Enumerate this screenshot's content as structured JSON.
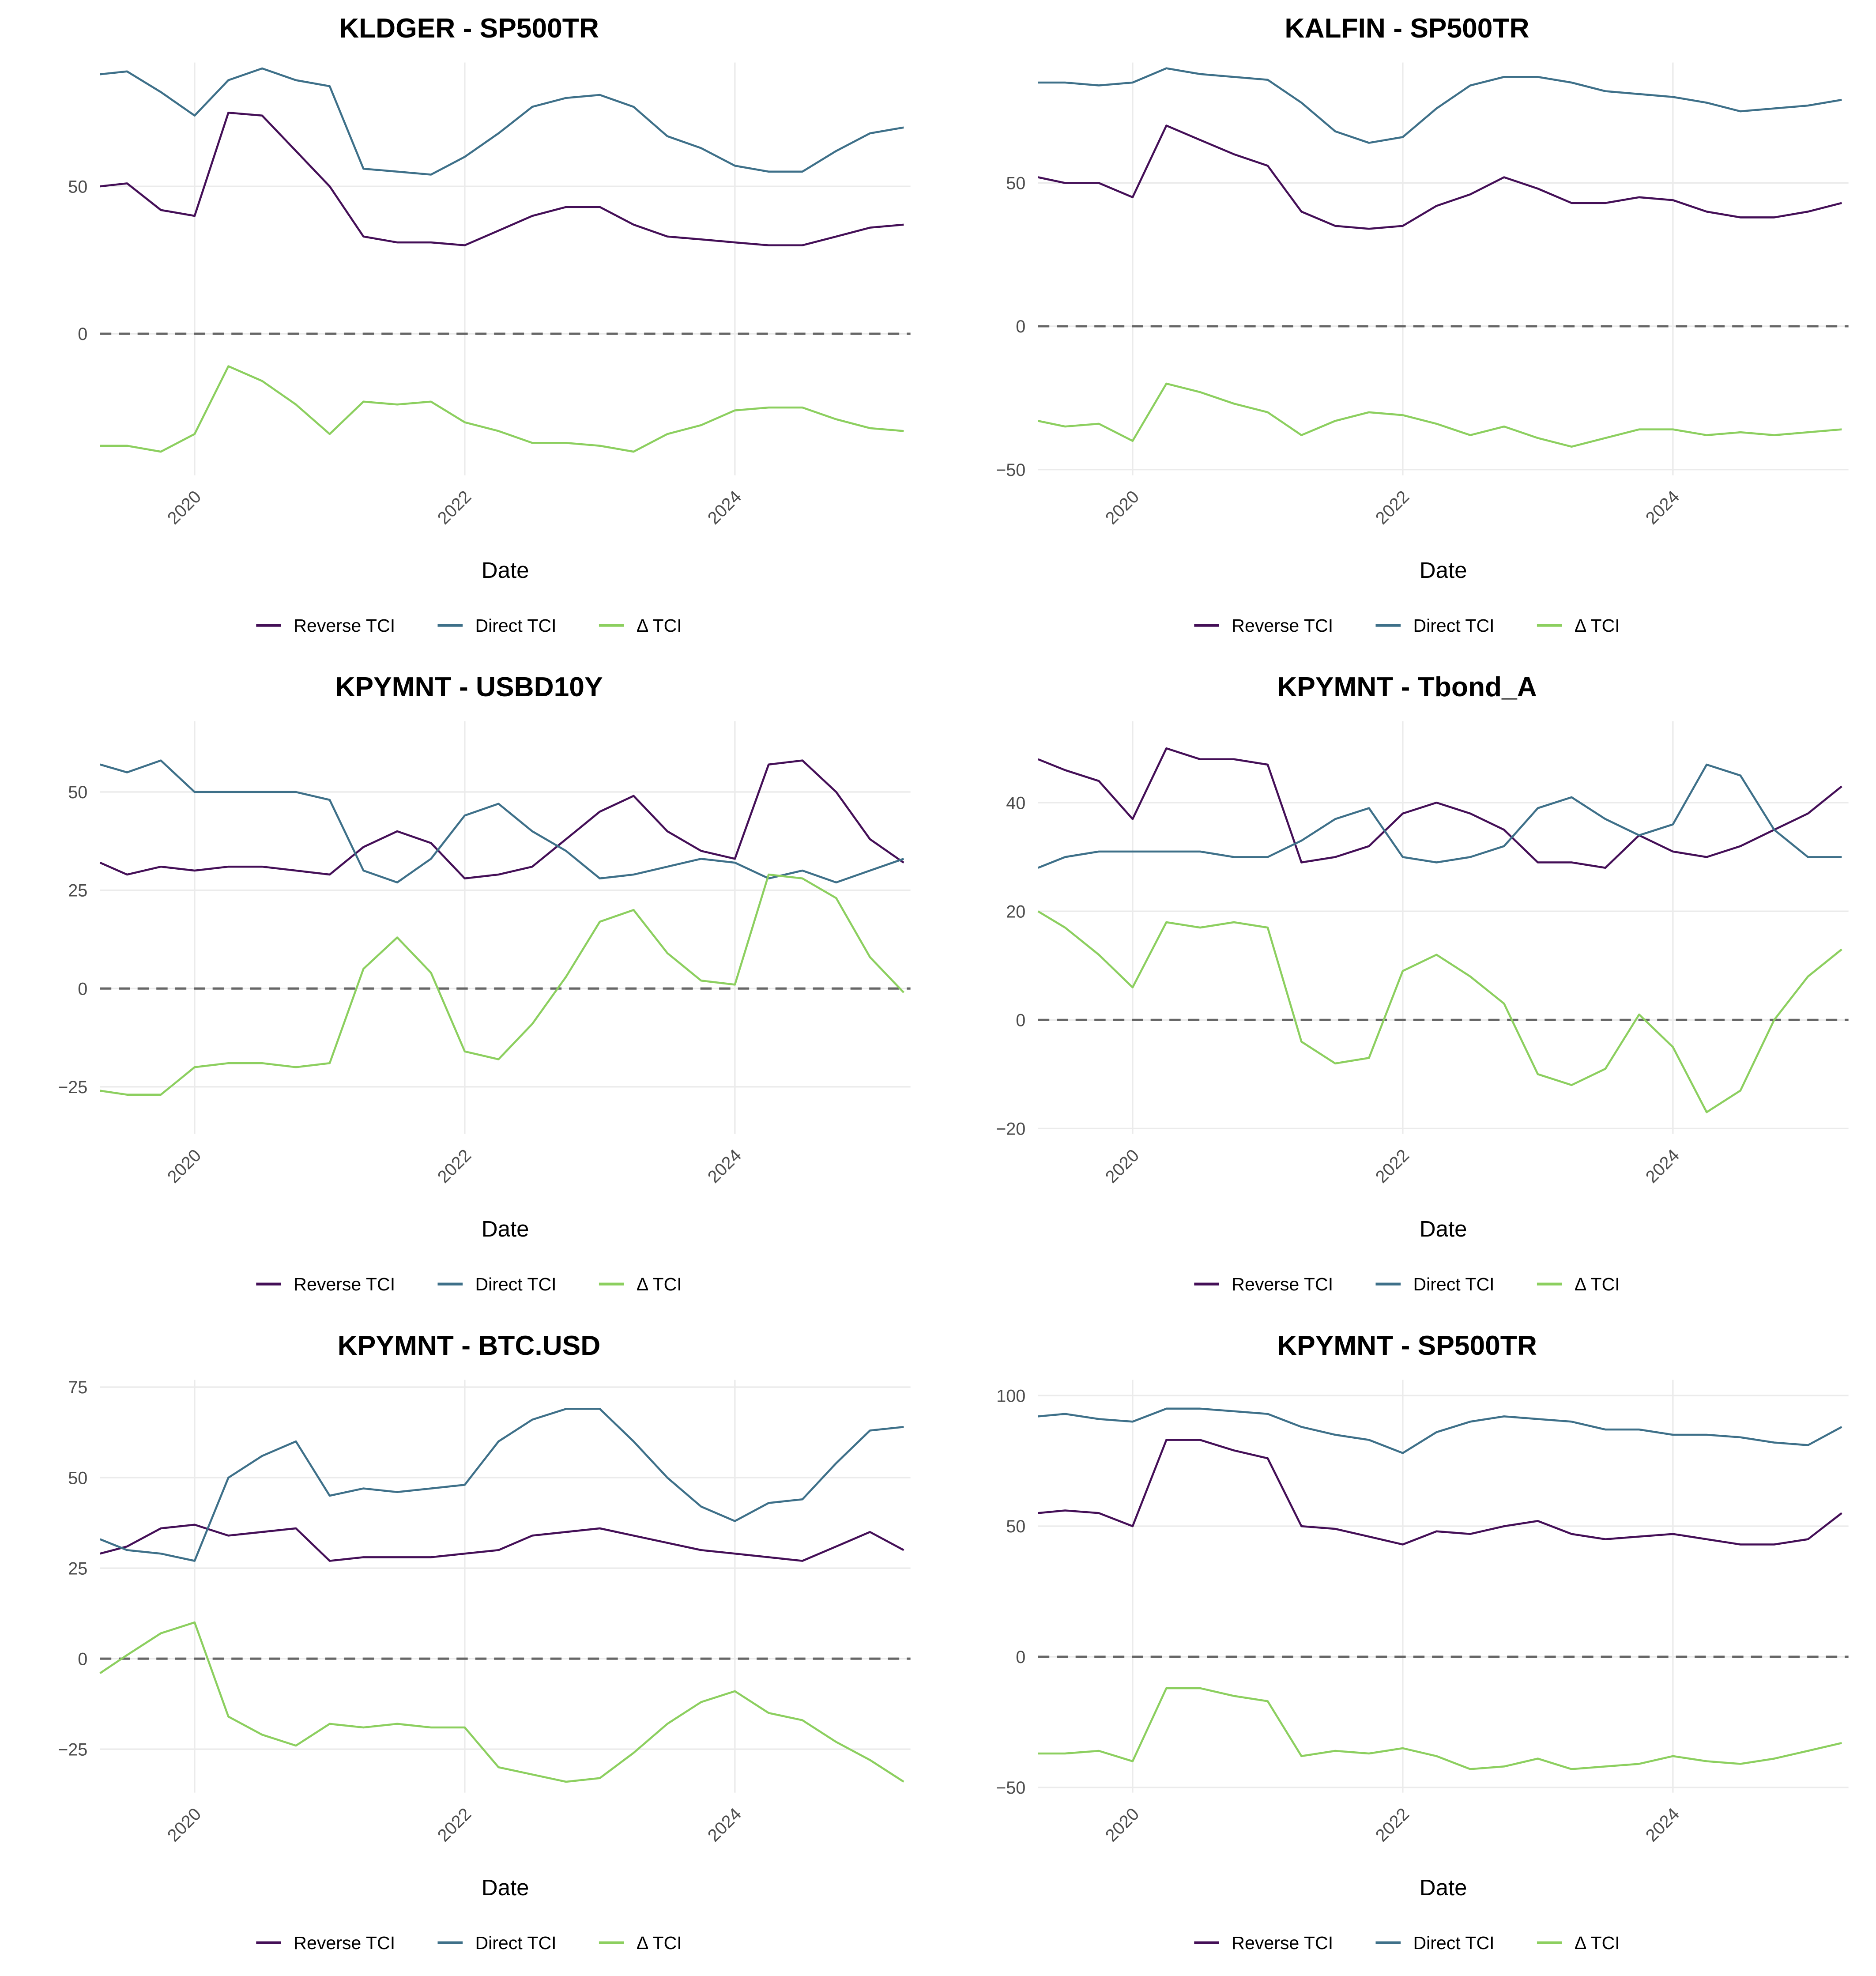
{
  "chart_data": [
    {
      "type": "line",
      "title": "KLDGER - SP500TR",
      "xlabel": "Date",
      "ylabel": "",
      "xlim": [
        2019.3,
        2025.3
      ],
      "ylim": [
        -48,
        92
      ],
      "x_ticks": [
        2020,
        2022,
        2024
      ],
      "x_tick_labels": [
        "2020",
        "2022",
        "2024"
      ],
      "y_ticks": [
        0,
        50
      ],
      "y_tick_labels": [
        "0",
        "50"
      ],
      "reference_line": 0,
      "grid": true,
      "legend_position": "bottom",
      "x": [
        2019.3,
        2019.5,
        2019.75,
        2020,
        2020.25,
        2020.5,
        2020.75,
        2021,
        2021.25,
        2021.5,
        2021.75,
        2022,
        2022.25,
        2022.5,
        2022.75,
        2023,
        2023.25,
        2023.5,
        2023.75,
        2024,
        2024.25,
        2024.5,
        2024.75,
        2025,
        2025.25
      ],
      "series": [
        {
          "name": "Reverse TCI",
          "color": "#440f57",
          "values": [
            50,
            51,
            42,
            40,
            75,
            74,
            62,
            50,
            33,
            31,
            31,
            30,
            35,
            40,
            43,
            43,
            37,
            33,
            32,
            31,
            30,
            30,
            33,
            36,
            37
          ]
        },
        {
          "name": "Direct TCI",
          "color": "#3e7089",
          "values": [
            88,
            89,
            82,
            74,
            86,
            90,
            86,
            84,
            56,
            55,
            54,
            60,
            68,
            77,
            80,
            81,
            77,
            67,
            63,
            57,
            55,
            55,
            62,
            68,
            70
          ]
        },
        {
          "name": "Δ TCI",
          "color": "#8ccf5f",
          "values": [
            -38,
            -38,
            -40,
            -34,
            -11,
            -16,
            -24,
            -34,
            -23,
            -24,
            -23,
            -30,
            -33,
            -37,
            -37,
            -38,
            -40,
            -34,
            -31,
            -26,
            -25,
            -25,
            -29,
            -32,
            -33
          ]
        }
      ]
    },
    {
      "type": "line",
      "title": "KALFIN - SP500TR",
      "xlabel": "Date",
      "ylabel": "",
      "xlim": [
        2019.3,
        2025.3
      ],
      "ylim": [
        -52,
        92
      ],
      "x_ticks": [
        2020,
        2022,
        2024
      ],
      "x_tick_labels": [
        "2020",
        "2022",
        "2024"
      ],
      "y_ticks": [
        -50,
        0,
        50
      ],
      "y_tick_labels": [
        "−50",
        "0",
        "50"
      ],
      "reference_line": 0,
      "grid": true,
      "legend_position": "bottom",
      "x": [
        2019.3,
        2019.5,
        2019.75,
        2020,
        2020.25,
        2020.5,
        2020.75,
        2021,
        2021.25,
        2021.5,
        2021.75,
        2022,
        2022.25,
        2022.5,
        2022.75,
        2023,
        2023.25,
        2023.5,
        2023.75,
        2024,
        2024.25,
        2024.5,
        2024.75,
        2025,
        2025.25
      ],
      "series": [
        {
          "name": "Reverse TCI",
          "color": "#440f57",
          "values": [
            52,
            50,
            50,
            45,
            70,
            65,
            60,
            56,
            40,
            35,
            34,
            35,
            42,
            46,
            52,
            48,
            43,
            43,
            45,
            44,
            40,
            38,
            38,
            40,
            43
          ]
        },
        {
          "name": "Direct TCI",
          "color": "#3e7089",
          "values": [
            85,
            85,
            84,
            85,
            90,
            88,
            87,
            86,
            78,
            68,
            64,
            66,
            76,
            84,
            87,
            87,
            85,
            82,
            81,
            80,
            78,
            75,
            76,
            77,
            79
          ]
        },
        {
          "name": "Δ TCI",
          "color": "#8ccf5f",
          "values": [
            -33,
            -35,
            -34,
            -40,
            -20,
            -23,
            -27,
            -30,
            -38,
            -33,
            -30,
            -31,
            -34,
            -38,
            -35,
            -39,
            -42,
            -39,
            -36,
            -36,
            -38,
            -37,
            -38,
            -37,
            -36
          ]
        }
      ]
    },
    {
      "type": "line",
      "title": "KPYMNT - USBD10Y",
      "xlabel": "Date",
      "ylabel": "",
      "xlim": [
        2019.3,
        2025.3
      ],
      "ylim": [
        -37,
        68
      ],
      "x_ticks": [
        2020,
        2022,
        2024
      ],
      "x_tick_labels": [
        "2020",
        "2022",
        "2024"
      ],
      "y_ticks": [
        -25,
        0,
        25,
        50
      ],
      "y_tick_labels": [
        "−25",
        "0",
        "25",
        "50"
      ],
      "reference_line": 0,
      "grid": true,
      "legend_position": "bottom",
      "x": [
        2019.3,
        2019.5,
        2019.75,
        2020,
        2020.25,
        2020.5,
        2020.75,
        2021,
        2021.25,
        2021.5,
        2021.75,
        2022,
        2022.25,
        2022.5,
        2022.75,
        2023,
        2023.25,
        2023.5,
        2023.75,
        2024,
        2024.25,
        2024.5,
        2024.75,
        2025,
        2025.25
      ],
      "series": [
        {
          "name": "Reverse TCI",
          "color": "#440f57",
          "values": [
            32,
            29,
            31,
            30,
            31,
            31,
            30,
            29,
            36,
            40,
            37,
            28,
            29,
            31,
            38,
            45,
            49,
            40,
            35,
            33,
            57,
            58,
            50,
            38,
            32
          ]
        },
        {
          "name": "Direct TCI",
          "color": "#3e7089",
          "values": [
            57,
            55,
            58,
            50,
            50,
            50,
            50,
            48,
            30,
            27,
            33,
            44,
            47,
            40,
            35,
            28,
            29,
            31,
            33,
            32,
            28,
            30,
            27,
            30,
            33
          ]
        },
        {
          "name": "Δ TCI",
          "color": "#8ccf5f",
          "values": [
            -26,
            -27,
            -27,
            -20,
            -19,
            -19,
            -20,
            -19,
            5,
            13,
            4,
            -16,
            -18,
            -9,
            3,
            17,
            20,
            9,
            2,
            1,
            29,
            28,
            23,
            8,
            -1
          ]
        }
      ]
    },
    {
      "type": "line",
      "title": "KPYMNT - Tbond_A",
      "xlabel": "Date",
      "ylabel": "",
      "xlim": [
        2019.3,
        2025.3
      ],
      "ylim": [
        -21,
        55
      ],
      "x_ticks": [
        2020,
        2022,
        2024
      ],
      "x_tick_labels": [
        "2020",
        "2022",
        "2024"
      ],
      "y_ticks": [
        -20,
        0,
        20,
        40
      ],
      "y_tick_labels": [
        "−20",
        "0",
        "20",
        "40"
      ],
      "reference_line": 0,
      "grid": true,
      "legend_position": "bottom",
      "x": [
        2019.3,
        2019.5,
        2019.75,
        2020,
        2020.25,
        2020.5,
        2020.75,
        2021,
        2021.25,
        2021.5,
        2021.75,
        2022,
        2022.25,
        2022.5,
        2022.75,
        2023,
        2023.25,
        2023.5,
        2023.75,
        2024,
        2024.25,
        2024.5,
        2024.75,
        2025,
        2025.25
      ],
      "series": [
        {
          "name": "Reverse TCI",
          "color": "#440f57",
          "values": [
            48,
            46,
            44,
            37,
            50,
            48,
            48,
            47,
            29,
            30,
            32,
            38,
            40,
            38,
            35,
            29,
            29,
            28,
            34,
            31,
            30,
            32,
            35,
            38,
            43
          ]
        },
        {
          "name": "Direct TCI",
          "color": "#3e7089",
          "values": [
            28,
            30,
            31,
            31,
            31,
            31,
            30,
            30,
            33,
            37,
            39,
            30,
            29,
            30,
            32,
            39,
            41,
            37,
            34,
            36,
            47,
            45,
            35,
            30,
            30
          ]
        },
        {
          "name": "Δ TCI",
          "color": "#8ccf5f",
          "values": [
            20,
            17,
            12,
            6,
            18,
            17,
            18,
            17,
            -4,
            -8,
            -7,
            9,
            12,
            8,
            3,
            -10,
            -12,
            -9,
            1,
            -5,
            -17,
            -13,
            0,
            8,
            13
          ]
        }
      ]
    },
    {
      "type": "line",
      "title": "KPYMNT - BTC.USD",
      "xlabel": "Date",
      "ylabel": "",
      "xlim": [
        2019.3,
        2025.3
      ],
      "ylim": [
        -37,
        77
      ],
      "x_ticks": [
        2020,
        2022,
        2024
      ],
      "x_tick_labels": [
        "2020",
        "2022",
        "2024"
      ],
      "y_ticks": [
        -25,
        0,
        25,
        50,
        75
      ],
      "y_tick_labels": [
        "−25",
        "0",
        "25",
        "50",
        "75"
      ],
      "reference_line": 0,
      "grid": true,
      "legend_position": "bottom",
      "x": [
        2019.3,
        2019.5,
        2019.75,
        2020,
        2020.25,
        2020.5,
        2020.75,
        2021,
        2021.25,
        2021.5,
        2021.75,
        2022,
        2022.25,
        2022.5,
        2022.75,
        2023,
        2023.25,
        2023.5,
        2023.75,
        2024,
        2024.25,
        2024.5,
        2024.75,
        2025,
        2025.25
      ],
      "series": [
        {
          "name": "Reverse TCI",
          "color": "#440f57",
          "values": [
            29,
            31,
            36,
            37,
            34,
            35,
            36,
            27,
            28,
            28,
            28,
            29,
            30,
            34,
            35,
            36,
            34,
            32,
            30,
            29,
            28,
            27,
            31,
            35,
            30
          ]
        },
        {
          "name": "Direct TCI",
          "color": "#3e7089",
          "values": [
            33,
            30,
            29,
            27,
            50,
            56,
            60,
            45,
            47,
            46,
            47,
            48,
            60,
            66,
            69,
            69,
            60,
            50,
            42,
            38,
            43,
            44,
            54,
            63,
            64
          ]
        },
        {
          "name": "Δ TCI",
          "color": "#8ccf5f",
          "values": [
            -4,
            1,
            7,
            10,
            -16,
            -21,
            -24,
            -18,
            -19,
            -18,
            -19,
            -19,
            -30,
            -32,
            -34,
            -33,
            -26,
            -18,
            -12,
            -9,
            -15,
            -17,
            -23,
            -28,
            -34
          ]
        }
      ]
    },
    {
      "type": "line",
      "title": "KPYMNT - SP500TR",
      "xlabel": "Date",
      "ylabel": "",
      "xlim": [
        2019.3,
        2025.3
      ],
      "ylim": [
        -52,
        106
      ],
      "x_ticks": [
        2020,
        2022,
        2024
      ],
      "x_tick_labels": [
        "2020",
        "2022",
        "2024"
      ],
      "y_ticks": [
        -50,
        0,
        50,
        100
      ],
      "y_tick_labels": [
        "−50",
        "0",
        "50",
        "100"
      ],
      "reference_line": 0,
      "grid": true,
      "legend_position": "bottom",
      "x": [
        2019.3,
        2019.5,
        2019.75,
        2020,
        2020.25,
        2020.5,
        2020.75,
        2021,
        2021.25,
        2021.5,
        2021.75,
        2022,
        2022.25,
        2022.5,
        2022.75,
        2023,
        2023.25,
        2023.5,
        2023.75,
        2024,
        2024.25,
        2024.5,
        2024.75,
        2025,
        2025.25
      ],
      "series": [
        {
          "name": "Reverse TCI",
          "color": "#440f57",
          "values": [
            55,
            56,
            55,
            50,
            83,
            83,
            79,
            76,
            50,
            49,
            46,
            43,
            48,
            47,
            50,
            52,
            47,
            45,
            46,
            47,
            45,
            43,
            43,
            45,
            55
          ]
        },
        {
          "name": "Direct TCI",
          "color": "#3e7089",
          "values": [
            92,
            93,
            91,
            90,
            95,
            95,
            94,
            93,
            88,
            85,
            83,
            78,
            86,
            90,
            92,
            91,
            90,
            87,
            87,
            85,
            85,
            84,
            82,
            81,
            88
          ]
        },
        {
          "name": "Δ TCI",
          "color": "#8ccf5f",
          "values": [
            -37,
            -37,
            -36,
            -40,
            -12,
            -12,
            -15,
            -17,
            -38,
            -36,
            -37,
            -35,
            -38,
            -43,
            -42,
            -39,
            -43,
            -42,
            -41,
            -38,
            -40,
            -41,
            -39,
            -36,
            -33
          ]
        }
      ]
    }
  ]
}
